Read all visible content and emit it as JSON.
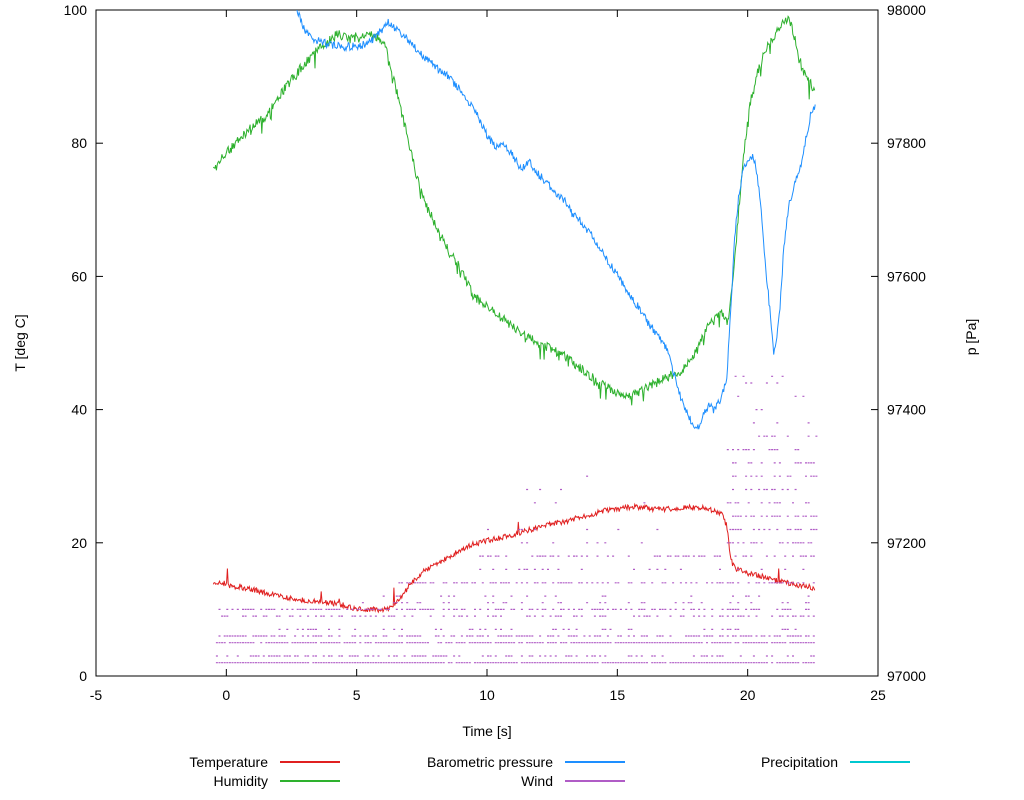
{
  "axes": {
    "x": {
      "label": "Time [s]",
      "min": -5,
      "max": 25,
      "ticks": [
        -5,
        0,
        5,
        10,
        15,
        20,
        25
      ]
    },
    "y_left": {
      "label": "T [deg C]",
      "min": 0,
      "max": 100,
      "ticks": [
        0,
        20,
        40,
        60,
        80,
        100
      ]
    },
    "y_right": {
      "label": "p [Pa]",
      "min": 97000,
      "max": 98000,
      "ticks": [
        97000,
        97200,
        97400,
        97600,
        97800,
        98000
      ]
    }
  },
  "legend": {
    "items": [
      {
        "label": "Temperature",
        "color": "#e02020"
      },
      {
        "label": "Barometric pressure",
        "color": "#1e8fff"
      },
      {
        "label": "Precipitation",
        "color": "#00c8d0"
      },
      {
        "label": "Humidity",
        "color": "#2eb12e"
      },
      {
        "label": "Wind",
        "color": "#b05cc6"
      }
    ]
  },
  "chart_data": {
    "type": "line",
    "xlabel": "Time [s]",
    "ylabel_left": "T [deg C]",
    "ylabel_right": "p [Pa]",
    "x_range": [
      -5,
      25
    ],
    "y_left_range": [
      0,
      100
    ],
    "y_right_range": [
      97000,
      98000
    ],
    "grid": false,
    "legend_position": "bottom",
    "series": [
      {
        "id": "temperature",
        "name": "Temperature",
        "color": "#e02020",
        "axis": "left",
        "noise": 0.4,
        "spike": {
          "p": 0.01,
          "amp": 3,
          "dir": 1
        },
        "points": [
          [
            -0.5,
            14.0
          ],
          [
            0,
            13.7
          ],
          [
            0.5,
            13.3
          ],
          [
            1,
            13.0
          ],
          [
            1.5,
            12.5
          ],
          [
            2,
            12.0
          ],
          [
            2.5,
            11.7
          ],
          [
            3,
            11.4
          ],
          [
            3.5,
            11.2
          ],
          [
            4,
            11.0
          ],
          [
            4.5,
            10.6
          ],
          [
            5,
            10.1
          ],
          [
            5.5,
            10.0
          ],
          [
            6,
            9.9
          ],
          [
            6.3,
            10.2
          ],
          [
            6.6,
            11.2
          ],
          [
            7,
            13.5
          ],
          [
            7.5,
            15.5
          ],
          [
            8,
            16.8
          ],
          [
            8.5,
            17.8
          ],
          [
            9,
            19.0
          ],
          [
            9.5,
            19.8
          ],
          [
            10,
            20.3
          ],
          [
            10.5,
            20.8
          ],
          [
            11,
            21.2
          ],
          [
            11.5,
            21.8
          ],
          [
            12,
            22.3
          ],
          [
            12.5,
            22.8
          ],
          [
            13,
            23.2
          ],
          [
            13.5,
            23.8
          ],
          [
            14,
            24.3
          ],
          [
            14.5,
            24.8
          ],
          [
            15,
            25.0
          ],
          [
            15.5,
            25.4
          ],
          [
            16,
            25.3
          ],
          [
            16.5,
            25.0
          ],
          [
            17,
            25.1
          ],
          [
            17.5,
            25.2
          ],
          [
            18,
            25.4
          ],
          [
            18.5,
            25.1
          ],
          [
            19,
            24.3
          ],
          [
            19.2,
            22.5
          ],
          [
            19.35,
            17.5
          ],
          [
            19.5,
            16.2
          ],
          [
            20,
            15.4
          ],
          [
            20.5,
            15.0
          ],
          [
            21,
            14.4
          ],
          [
            21.5,
            14.0
          ],
          [
            22,
            13.6
          ],
          [
            22.6,
            13.2
          ]
        ]
      },
      {
        "id": "humidity",
        "name": "Humidity",
        "color": "#2eb12e",
        "axis": "left",
        "noise": 0.7,
        "spike": {
          "p": 0.05,
          "amp": 2.5,
          "dir": -1
        },
        "points": [
          [
            -0.5,
            76.0
          ],
          [
            0,
            78.5
          ],
          [
            0.5,
            80.5
          ],
          [
            1,
            82.5
          ],
          [
            1.5,
            84.0
          ],
          [
            2,
            87.0
          ],
          [
            2.5,
            89.5
          ],
          [
            3,
            92.0
          ],
          [
            3.5,
            94.0
          ],
          [
            4,
            95.5
          ],
          [
            4.3,
            96.5
          ],
          [
            4.7,
            95.5
          ],
          [
            5,
            96.0
          ],
          [
            5.4,
            96.5
          ],
          [
            5.8,
            96.0
          ],
          [
            6.1,
            94.5
          ],
          [
            6.4,
            90.0
          ],
          [
            6.7,
            85.0
          ],
          [
            7,
            80.0
          ],
          [
            7.3,
            75.0
          ],
          [
            7.6,
            71.0
          ],
          [
            8,
            68.0
          ],
          [
            8.5,
            64.0
          ],
          [
            9,
            61.0
          ],
          [
            9.5,
            57.0
          ],
          [
            10,
            55.5
          ],
          [
            10.5,
            54.0
          ],
          [
            11,
            52.5
          ],
          [
            11.5,
            51.0
          ],
          [
            12,
            50.0
          ],
          [
            12.5,
            49.0
          ],
          [
            13,
            48.0
          ],
          [
            13.5,
            46.5
          ],
          [
            14,
            45.0
          ],
          [
            14.5,
            43.5
          ],
          [
            15,
            42.5
          ],
          [
            15.5,
            42.0
          ],
          [
            16,
            43.0
          ],
          [
            16.5,
            44.0
          ],
          [
            17,
            45.0
          ],
          [
            17.5,
            46.0
          ],
          [
            18,
            48.5
          ],
          [
            18.3,
            51.0
          ],
          [
            18.6,
            53.5
          ],
          [
            19,
            54.5
          ],
          [
            19.25,
            53.0
          ],
          [
            19.5,
            62.0
          ],
          [
            19.7,
            72.0
          ],
          [
            19.9,
            80.0
          ],
          [
            20.1,
            86.0
          ],
          [
            20.4,
            91.0
          ],
          [
            20.7,
            94.0
          ],
          [
            21,
            96.0
          ],
          [
            21.3,
            97.5
          ],
          [
            21.5,
            99.0
          ],
          [
            21.7,
            97.5
          ],
          [
            21.9,
            94.0
          ],
          [
            22.1,
            91.0
          ],
          [
            22.3,
            89.5
          ],
          [
            22.6,
            88.0
          ]
        ]
      },
      {
        "id": "barometric_pressure",
        "name": "Barometric pressure",
        "color": "#1e8fff",
        "axis": "right",
        "noise": 6,
        "points": [
          [
            2.55,
            98025
          ],
          [
            2.8,
            97990
          ],
          [
            3,
            97970
          ],
          [
            3.3,
            97958
          ],
          [
            3.6,
            97952
          ],
          [
            4,
            97948
          ],
          [
            4.5,
            97945
          ],
          [
            5,
            97945
          ],
          [
            5.5,
            97952
          ],
          [
            5.9,
            97968
          ],
          [
            6.2,
            97982
          ],
          [
            6.4,
            97975
          ],
          [
            6.7,
            97962
          ],
          [
            7,
            97955
          ],
          [
            7.3,
            97940
          ],
          [
            7.6,
            97930
          ],
          [
            8,
            97915
          ],
          [
            8.5,
            97900
          ],
          [
            9,
            97878
          ],
          [
            9.3,
            97860
          ],
          [
            9.6,
            97845
          ],
          [
            10,
            97812
          ],
          [
            10.3,
            97795
          ],
          [
            10.6,
            97800
          ],
          [
            11,
            97782
          ],
          [
            11.3,
            97762
          ],
          [
            11.6,
            97772
          ],
          [
            12,
            97752
          ],
          [
            12.5,
            97732
          ],
          [
            13,
            97712
          ],
          [
            13.3,
            97692
          ],
          [
            13.6,
            97682
          ],
          [
            14,
            97662
          ],
          [
            14.5,
            97632
          ],
          [
            15,
            97602
          ],
          [
            15.5,
            97572
          ],
          [
            16,
            97542
          ],
          [
            16.3,
            97522
          ],
          [
            16.6,
            97512
          ],
          [
            17,
            97482
          ],
          [
            17.3,
            97432
          ],
          [
            17.6,
            97402
          ],
          [
            17.9,
            97378
          ],
          [
            18.1,
            97375
          ],
          [
            18.3,
            97390
          ],
          [
            18.5,
            97408
          ],
          [
            18.7,
            97398
          ],
          [
            19,
            97418
          ],
          [
            19.2,
            97448
          ],
          [
            19.35,
            97550
          ],
          [
            19.5,
            97660
          ],
          [
            19.65,
            97720
          ],
          [
            19.8,
            97755
          ],
          [
            20,
            97775
          ],
          [
            20.15,
            97782
          ],
          [
            20.3,
            97770
          ],
          [
            20.5,
            97710
          ],
          [
            20.7,
            97610
          ],
          [
            20.9,
            97530
          ],
          [
            21,
            97485
          ],
          [
            21.1,
            97500
          ],
          [
            21.25,
            97560
          ],
          [
            21.4,
            97650
          ],
          [
            21.6,
            97710
          ],
          [
            21.8,
            97740
          ],
          [
            22,
            97760
          ],
          [
            22.2,
            97800
          ],
          [
            22.4,
            97840
          ],
          [
            22.6,
            97855
          ]
        ]
      },
      {
        "id": "precipitation",
        "name": "Precipitation",
        "color": "#00c8d0",
        "axis": "left",
        "noise": 0,
        "points": []
      }
    ],
    "wind": {
      "id": "wind",
      "name": "Wind",
      "color": "#b05cc6",
      "style": "dotted-horizontal-bands",
      "bands": [
        {
          "y": 2,
          "x0": -0.4,
          "x1": 22.6,
          "density": 0.95
        },
        {
          "y": 3,
          "x0": -0.4,
          "x1": 22.6,
          "density": 0.45
        },
        {
          "y": 5,
          "x0": -0.4,
          "x1": 22.6,
          "density": 0.9
        },
        {
          "y": 6,
          "x0": -0.4,
          "x1": 22.6,
          "density": 0.55
        },
        {
          "y": 7,
          "x0": 2,
          "x1": 22.6,
          "density": 0.2
        },
        {
          "y": 9,
          "x0": -0.4,
          "x1": 22.6,
          "density": 0.45
        },
        {
          "y": 10,
          "x0": -0.4,
          "x1": 22.6,
          "density": 0.6
        },
        {
          "y": 11,
          "x0": 5,
          "x1": 22.6,
          "density": 0.18
        },
        {
          "y": 12,
          "x0": 6,
          "x1": 22.6,
          "density": 0.12
        },
        {
          "y": 14,
          "x0": 6.5,
          "x1": 22.6,
          "density": 0.5
        },
        {
          "y": 16,
          "x0": 9,
          "x1": 22.6,
          "density": 0.15
        },
        {
          "y": 18,
          "x0": 9.5,
          "x1": 22.6,
          "density": 0.4
        },
        {
          "y": 20,
          "x0": 11,
          "x1": 16.5,
          "density": 0.08
        },
        {
          "y": 22,
          "x0": 10,
          "x1": 16.5,
          "density": 0.07
        },
        {
          "y": 26,
          "x0": 11,
          "x1": 16,
          "density": 0.05
        },
        {
          "y": 28,
          "x0": 10.2,
          "x1": 14,
          "density": 0.05
        },
        {
          "y": 30,
          "x0": 10.2,
          "x1": 16.5,
          "density": 0.05
        },
        {
          "y": 20,
          "x0": 19.2,
          "x1": 22.7,
          "density": 0.5
        },
        {
          "y": 22,
          "x0": 19.2,
          "x1": 22.7,
          "density": 0.45
        },
        {
          "y": 24,
          "x0": 19.2,
          "x1": 22.7,
          "density": 0.45
        },
        {
          "y": 26,
          "x0": 19.2,
          "x1": 22.7,
          "density": 0.4
        },
        {
          "y": 28,
          "x0": 19.2,
          "x1": 22.7,
          "density": 0.4
        },
        {
          "y": 30,
          "x0": 19.2,
          "x1": 22.7,
          "density": 0.35
        },
        {
          "y": 32,
          "x0": 19.2,
          "x1": 22.7,
          "density": 0.3
        },
        {
          "y": 34,
          "x0": 19.2,
          "x1": 22.7,
          "density": 0.3
        },
        {
          "y": 36,
          "x0": 19.3,
          "x1": 22.7,
          "density": 0.25
        },
        {
          "y": 38,
          "x0": 19.3,
          "x1": 22.7,
          "density": 0.22
        },
        {
          "y": 40,
          "x0": 19.3,
          "x1": 22.6,
          "density": 0.18
        },
        {
          "y": 42,
          "x0": 19.4,
          "x1": 22.5,
          "density": 0.14
        },
        {
          "y": 44,
          "x0": 19.4,
          "x1": 22.3,
          "density": 0.1
        },
        {
          "y": 45,
          "x0": 19.5,
          "x1": 22.2,
          "density": 0.07
        }
      ]
    }
  }
}
